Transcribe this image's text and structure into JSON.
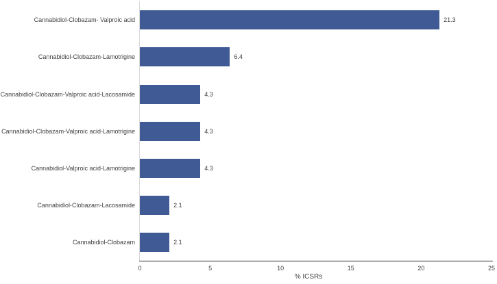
{
  "chart_data": {
    "type": "bar",
    "orientation": "horizontal",
    "title": "",
    "categories": [
      "Cannabidiol-Clobazam- Valproic acid",
      "Cannabidiol-Clobazam-Lamotrigine",
      "Cannabidiol-Clobazam-Valproic acid-Lacosamide",
      "Cannabidiol-Clobazam-Valproic acid-Lamotrigine",
      "Cannabidiol-Valproic acid-Lamotrigine",
      "Cannabidiol-Clobazam-Lacosamide",
      "Cannabidiol-Clobazam"
    ],
    "values": [
      21.3,
      6.4,
      4.3,
      4.3,
      4.3,
      2.1,
      2.1
    ],
    "value_labels": [
      "21.3",
      "6.4",
      "4.3",
      "4.3",
      "4.3",
      "2.1",
      "2.1"
    ],
    "xlabel": "% ICSRs",
    "xlim": [
      0,
      25
    ],
    "xtick_labels": [
      "0",
      "5",
      "10",
      "15",
      "20",
      "25"
    ],
    "xticks": [
      0,
      5,
      10,
      15,
      20,
      25
    ],
    "grid": "off",
    "legend": "none"
  },
  "colors": {
    "bar": "#405A95",
    "axis_line": "#262626",
    "zero_line": "#D9D9D9",
    "text": "#404040",
    "background": "#FFFFFF"
  }
}
